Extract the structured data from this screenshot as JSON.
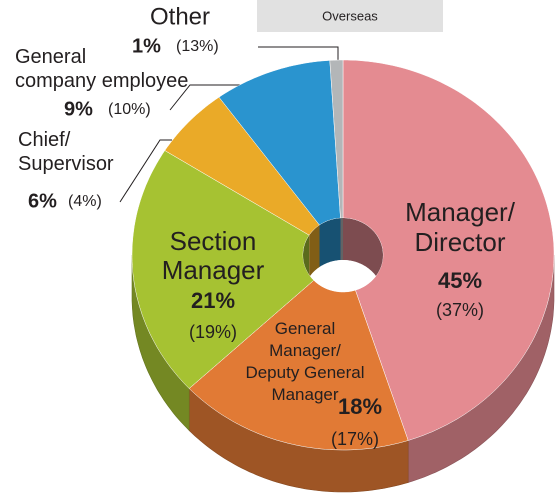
{
  "chart_data": {
    "type": "pie",
    "categories": [
      "Manager/\nDirector",
      "General\nManager/\nDeputy General\nManager",
      "Section\nManager",
      "Chief/\nSupervisor",
      "General\ncompany employee",
      "Other"
    ],
    "values": [
      45,
      18,
      21,
      6,
      9,
      1
    ],
    "value_labels": [
      "45%",
      "18%",
      "21%",
      "6%",
      "9%",
      "1%"
    ],
    "colors": [
      "#e48b91",
      "#e17a35",
      "#a6c232",
      "#eaaa28",
      "#2a94cf",
      "#b3b6b8"
    ],
    "overseas": {
      "name": "Overseas",
      "values": [
        37,
        17,
        19,
        4,
        10,
        13
      ],
      "value_labels": [
        "(37%)",
        "(17%)",
        "(19%)",
        "(4%)",
        "(10%)",
        "(13%)"
      ]
    }
  }
}
